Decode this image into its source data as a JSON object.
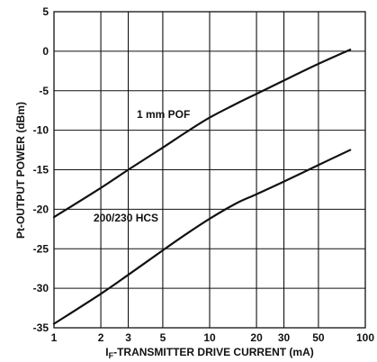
{
  "chart_data": {
    "type": "line",
    "xlabel_prefix": "I",
    "xlabel_sub": "F",
    "xlabel_rest": "-TRANSMITTER DRIVE CURRENT (mA)",
    "ylabel": "Pt-OUTPUT POWER (dBm)",
    "xscale": "log",
    "xlim": [
      1,
      100
    ],
    "ylim": [
      -35,
      5
    ],
    "x_ticks": [
      1,
      2,
      3,
      5,
      10,
      20,
      30,
      50,
      100
    ],
    "x_tick_labels": [
      "1",
      "2",
      "3",
      "5",
      "10",
      "20",
      "30",
      "50",
      "100"
    ],
    "y_ticks": [
      5,
      0,
      -5,
      -10,
      -15,
      -20,
      -25,
      -30,
      -35
    ],
    "y_tick_labels": [
      "5",
      "0",
      "-5",
      "-10",
      "-15",
      "-20",
      "-25",
      "-30",
      "-35"
    ],
    "grid": true,
    "series": [
      {
        "name": "1 mm POF",
        "x": [
          1,
          2,
          3,
          5,
          7,
          10,
          15,
          20,
          30,
          50,
          80
        ],
        "y": [
          -21,
          -17.3,
          -15,
          -12.2,
          -10.3,
          -8.4,
          -6.6,
          -5.4,
          -3.7,
          -1.6,
          0.2
        ]
      },
      {
        "name": "200/230 HCS",
        "x": [
          1,
          2,
          3,
          5,
          7,
          10,
          15,
          20,
          30,
          50,
          80
        ],
        "y": [
          -34.5,
          -30.7,
          -28.3,
          -25.2,
          -23.2,
          -21.2,
          -19.2,
          -18.1,
          -16.5,
          -14.4,
          -12.5
        ]
      }
    ]
  }
}
